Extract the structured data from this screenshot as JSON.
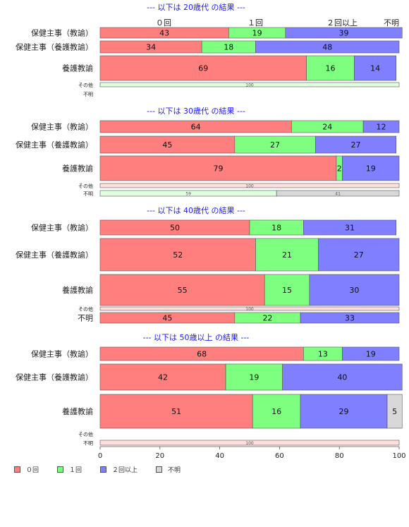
{
  "colors": {
    "c0": "#ff7f7f",
    "c1": "#7fff7f",
    "c2": "#7f7fff",
    "cu": "#d8d8d8",
    "title": "#1a1aff"
  },
  "legend": {
    "items": [
      {
        "label": "０回",
        "color": "#ff7f7f"
      },
      {
        "label": "１回",
        "color": "#7fff7f"
      },
      {
        "label": "２回以上",
        "color": "#7f7fff"
      },
      {
        "label": "不明",
        "color": "#d8d8d8"
      }
    ]
  },
  "chart_data": {
    "type": "bar",
    "orientation": "horizontal",
    "stacked": true,
    "xlim": [
      0,
      100
    ],
    "xticks": [
      0,
      20,
      40,
      60,
      80,
      100
    ],
    "category_headers": [
      "０回",
      "１回",
      "２回以上",
      "不明"
    ],
    "panels": [
      {
        "title": "--- 以下は 20歳代 の結果 ---",
        "rows": [
          {
            "label": "保健主事（教諭）",
            "values": [
              43,
              19,
              39,
              0
            ]
          },
          {
            "label": "保健主事（養護教諭）",
            "values": [
              34,
              18,
              48,
              0
            ]
          },
          {
            "label": "養護教諭",
            "values": [
              69,
              16,
              14,
              0
            ]
          },
          {
            "label": "その他",
            "values": [
              0,
              100,
              0,
              0
            ]
          },
          {
            "label": "不明",
            "values": null
          }
        ]
      },
      {
        "title": "--- 以下は 30歳代 の結果 ---",
        "rows": [
          {
            "label": "保健主事（教諭）",
            "values": [
              64,
              24,
              12,
              0
            ]
          },
          {
            "label": "保健主事（養護教諭）",
            "values": [
              45,
              27,
              27,
              0
            ]
          },
          {
            "label": "養護教諭",
            "values": [
              79,
              2,
              19,
              0
            ]
          },
          {
            "label": "その他",
            "values": [
              100,
              0,
              0,
              0
            ]
          },
          {
            "label": "不明",
            "values": [
              0,
              59,
              0,
              41
            ]
          }
        ]
      },
      {
        "title": "--- 以下は 40歳代 の結果 ---",
        "rows": [
          {
            "label": "保健主事（教諭）",
            "values": [
              50,
              18,
              31,
              0
            ]
          },
          {
            "label": "保健主事（養護教諭）",
            "values": [
              52,
              21,
              27,
              0
            ]
          },
          {
            "label": "養護教諭",
            "values": [
              55,
              15,
              30,
              0
            ]
          },
          {
            "label": "その他",
            "values": [
              100,
              0,
              0,
              0
            ]
          },
          {
            "label": "不明",
            "values": [
              45,
              22,
              33,
              0
            ]
          }
        ]
      },
      {
        "title": "--- 以下は 50歳以上 の結果 ---",
        "rows": [
          {
            "label": "保健主事（教諭）",
            "values": [
              68,
              13,
              19,
              0
            ]
          },
          {
            "label": "保健主事（養護教諭）",
            "values": [
              42,
              19,
              40,
              0
            ]
          },
          {
            "label": "養護教諭",
            "values": [
              51,
              16,
              29,
              5
            ]
          },
          {
            "label": "その他",
            "values": null
          },
          {
            "label": "不明",
            "values": [
              100,
              0,
              0,
              0
            ]
          }
        ]
      }
    ]
  }
}
